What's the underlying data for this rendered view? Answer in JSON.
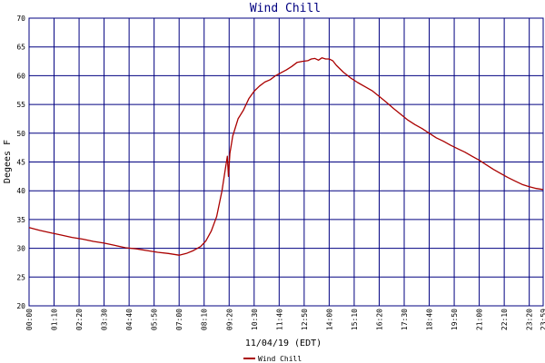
{
  "chart_data": {
    "type": "line",
    "title": "Wind Chill",
    "xlabel": "11/04/19 (EDT)",
    "ylabel": "Degees F",
    "ylim": [
      20,
      70
    ],
    "yticks": [
      20,
      25,
      30,
      35,
      40,
      45,
      50,
      55,
      60,
      65,
      70
    ],
    "xlim": [
      "00:00",
      "23:59"
    ],
    "xticks": [
      "00:00",
      "01:10",
      "02:20",
      "03:30",
      "04:40",
      "05:50",
      "07:00",
      "08:10",
      "09:20",
      "10:30",
      "11:40",
      "12:50",
      "14:00",
      "15:10",
      "16:20",
      "17:30",
      "18:40",
      "19:50",
      "21:00",
      "22:10",
      "23:20",
      "23:59"
    ],
    "grid": true,
    "colors": {
      "series": "#aa0000",
      "grid": "#000080",
      "title": "#000080",
      "axis_text": "#000000"
    },
    "series": [
      {
        "name": "Wind Chill",
        "points": [
          [
            "00:00",
            33.6
          ],
          [
            "00:30",
            33.1
          ],
          [
            "01:00",
            32.7
          ],
          [
            "01:30",
            32.3
          ],
          [
            "02:00",
            31.9
          ],
          [
            "02:30",
            31.6
          ],
          [
            "03:00",
            31.2
          ],
          [
            "03:30",
            30.9
          ],
          [
            "04:00",
            30.5
          ],
          [
            "04:30",
            30.1
          ],
          [
            "05:00",
            29.9
          ],
          [
            "05:30",
            29.6
          ],
          [
            "06:00",
            29.3
          ],
          [
            "06:30",
            29.1
          ],
          [
            "07:00",
            28.8
          ],
          [
            "07:20",
            29.1
          ],
          [
            "07:40",
            29.6
          ],
          [
            "08:00",
            30.3
          ],
          [
            "08:15",
            31.3
          ],
          [
            "08:30",
            33.0
          ],
          [
            "08:45",
            35.5
          ],
          [
            "09:00",
            40.0
          ],
          [
            "09:10",
            44.0
          ],
          [
            "09:15",
            46.0
          ],
          [
            "09:18",
            42.5
          ],
          [
            "09:22",
            46.5
          ],
          [
            "09:30",
            49.5
          ],
          [
            "09:45",
            52.5
          ],
          [
            "10:00",
            54.0
          ],
          [
            "10:15",
            56.0
          ],
          [
            "10:30",
            57.3
          ],
          [
            "10:45",
            58.2
          ],
          [
            "11:00",
            58.9
          ],
          [
            "11:15",
            59.3
          ],
          [
            "11:30",
            60.0
          ],
          [
            "11:45",
            60.5
          ],
          [
            "12:00",
            61.0
          ],
          [
            "12:15",
            61.6
          ],
          [
            "12:30",
            62.3
          ],
          [
            "12:45",
            62.5
          ],
          [
            "13:00",
            62.6
          ],
          [
            "13:10",
            62.9
          ],
          [
            "13:20",
            63.0
          ],
          [
            "13:30",
            62.7
          ],
          [
            "13:40",
            63.1
          ],
          [
            "13:50",
            62.9
          ],
          [
            "14:00",
            62.9
          ],
          [
            "14:10",
            62.6
          ],
          [
            "14:20",
            61.8
          ],
          [
            "14:40",
            60.6
          ],
          [
            "15:00",
            59.6
          ],
          [
            "15:20",
            58.8
          ],
          [
            "15:40",
            58.1
          ],
          [
            "16:00",
            57.4
          ],
          [
            "16:20",
            56.4
          ],
          [
            "16:40",
            55.4
          ],
          [
            "17:00",
            54.3
          ],
          [
            "17:20",
            53.3
          ],
          [
            "17:40",
            52.3
          ],
          [
            "18:00",
            51.5
          ],
          [
            "18:20",
            50.8
          ],
          [
            "18:40",
            50.0
          ],
          [
            "19:00",
            49.2
          ],
          [
            "19:20",
            48.6
          ],
          [
            "19:40",
            47.9
          ],
          [
            "20:00",
            47.3
          ],
          [
            "20:20",
            46.7
          ],
          [
            "20:40",
            46.0
          ],
          [
            "21:00",
            45.3
          ],
          [
            "21:20",
            44.5
          ],
          [
            "21:40",
            43.7
          ],
          [
            "22:00",
            43.0
          ],
          [
            "22:20",
            42.3
          ],
          [
            "22:40",
            41.7
          ],
          [
            "23:00",
            41.1
          ],
          [
            "23:20",
            40.7
          ],
          [
            "23:40",
            40.4
          ],
          [
            "23:59",
            40.2
          ]
        ]
      }
    ],
    "legend": {
      "placement": "bottom-center"
    }
  }
}
